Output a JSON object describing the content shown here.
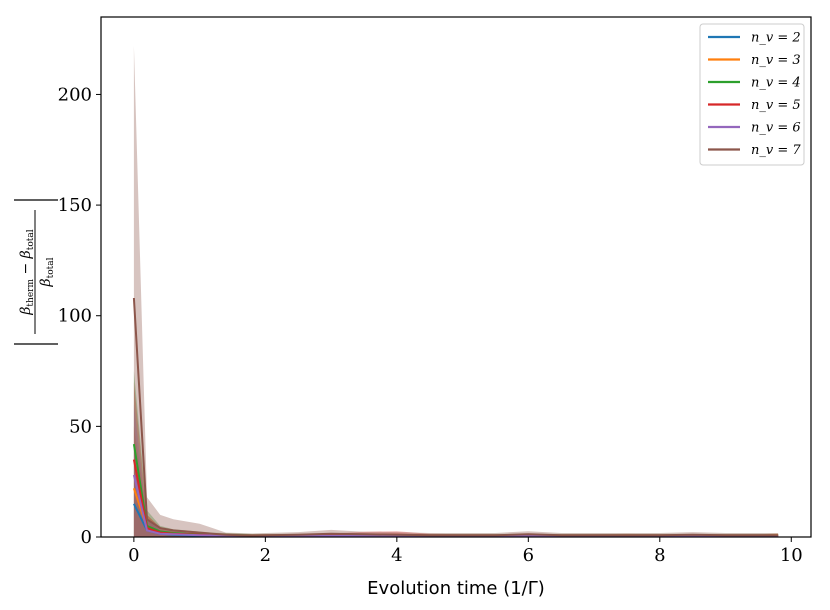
{
  "chart_data": {
    "type": "line",
    "xlabel": "Evolution time (1/Γ)",
    "ylabel": "|(β_therm − β_total)/β_total|",
    "xlim": [
      -0.5,
      10.3
    ],
    "ylim": [
      0,
      235
    ],
    "xticks": [
      0,
      2,
      4,
      6,
      8,
      10
    ],
    "yticks": [
      0,
      50,
      100,
      150,
      200
    ],
    "grid": false,
    "legend": "top-right",
    "x": [
      0.0,
      0.2,
      0.4,
      0.6,
      0.8,
      1.0,
      1.2,
      1.4,
      1.6,
      1.8,
      2.0,
      2.5,
      3.0,
      3.5,
      4.0,
      4.5,
      5.0,
      5.5,
      6.0,
      6.5,
      7.0,
      7.5,
      8.0,
      8.5,
      9.0,
      9.5,
      9.8
    ],
    "series": [
      {
        "name": "n_v = 2",
        "color": "#1f77b4",
        "values": [
          15,
          3,
          1.5,
          1.0,
          0.8,
          0.6,
          0.5,
          0.4,
          0.35,
          0.3,
          0.3,
          0.3,
          0.3,
          0.3,
          0.3,
          0.3,
          0.3,
          0.3,
          0.3,
          0.3,
          0.3,
          0.3,
          0.3,
          0.3,
          0.3,
          0.3,
          0.3
        ],
        "lower": [
          0,
          0,
          0,
          0,
          0,
          0,
          0,
          0,
          0,
          0,
          0,
          0,
          0,
          0,
          0,
          0,
          0,
          0,
          0,
          0,
          0,
          0,
          0,
          0,
          0,
          0,
          0
        ],
        "upper": [
          40,
          8,
          3,
          2,
          1.5,
          1.2,
          1,
          0.8,
          0.7,
          0.6,
          0.6,
          0.6,
          0.6,
          0.6,
          0.6,
          0.6,
          0.6,
          0.6,
          0.6,
          0.6,
          0.6,
          0.6,
          0.6,
          0.6,
          0.6,
          0.6,
          0.6
        ]
      },
      {
        "name": "n_v = 3",
        "color": "#ff7f0e",
        "values": [
          22,
          4,
          2,
          1.5,
          1.2,
          1.0,
          0.8,
          0.7,
          0.6,
          0.6,
          0.6,
          0.6,
          0.6,
          0.6,
          0.6,
          0.6,
          0.6,
          0.6,
          0.6,
          0.6,
          0.6,
          0.6,
          0.6,
          0.6,
          0.6,
          0.6,
          0.8
        ],
        "lower": [
          0,
          0,
          0,
          0,
          0,
          0,
          0,
          0,
          0,
          0,
          0,
          0,
          0,
          0,
          0,
          0,
          0,
          0,
          0,
          0,
          0,
          0,
          0,
          0,
          0,
          0,
          0
        ],
        "upper": [
          50,
          10,
          4,
          3,
          2.5,
          2,
          1.6,
          1.4,
          1.2,
          1.2,
          1.2,
          1.2,
          1.2,
          1.2,
          1.2,
          1.2,
          1.2,
          1.2,
          1.2,
          1.2,
          1.2,
          1.4,
          1.2,
          1.2,
          1.2,
          1.2,
          1.6
        ]
      },
      {
        "name": "n_v = 4",
        "color": "#2ca02c",
        "values": [
          42,
          5,
          2.5,
          1.8,
          1.4,
          1.2,
          1.0,
          0.9,
          0.8,
          0.7,
          0.7,
          0.7,
          0.7,
          0.7,
          0.7,
          0.7,
          0.7,
          0.7,
          0.7,
          0.7,
          0.7,
          0.7,
          0.7,
          0.7,
          0.7,
          0.7,
          0.7
        ],
        "lower": [
          0,
          0,
          0,
          0,
          0,
          0,
          0,
          0,
          0,
          0,
          0,
          0,
          0,
          0,
          0,
          0,
          0,
          0,
          0,
          0,
          0,
          0,
          0,
          0,
          0,
          0,
          0
        ],
        "upper": [
          75,
          12,
          5,
          3.5,
          3,
          2.5,
          2,
          1.8,
          1.6,
          1.4,
          1.4,
          1.4,
          1.4,
          1.4,
          1.4,
          1.4,
          1.4,
          1.4,
          1.4,
          1.4,
          1.4,
          1.4,
          1.4,
          1.4,
          1.4,
          1.4,
          1.4
        ]
      },
      {
        "name": "n_v = 5",
        "color": "#d62728",
        "values": [
          35,
          4,
          2,
          1.5,
          1.2,
          1.0,
          0.9,
          0.8,
          0.7,
          0.6,
          0.6,
          0.7,
          0.8,
          1.0,
          1.0,
          0.7,
          0.6,
          0.6,
          0.6,
          0.6,
          0.6,
          0.6,
          0.6,
          0.6,
          0.6,
          0.6,
          0.6
        ],
        "lower": [
          0,
          0,
          0,
          0,
          0,
          0,
          0,
          0,
          0,
          0,
          0,
          0,
          0,
          0,
          0,
          0,
          0,
          0,
          0,
          0,
          0,
          0,
          0,
          0,
          0,
          0,
          0
        ],
        "upper": [
          70,
          10,
          4.5,
          3,
          2.5,
          2,
          1.8,
          1.6,
          1.4,
          1.2,
          1.2,
          1.4,
          1.6,
          2.4,
          2.6,
          1.5,
          1.2,
          1.2,
          1.2,
          1.2,
          1.2,
          1.2,
          1.2,
          1.2,
          1.2,
          1.2,
          1.2
        ]
      },
      {
        "name": "n_v = 6",
        "color": "#9467bd",
        "values": [
          28,
          3,
          1.5,
          1.2,
          1.0,
          0.8,
          0.7,
          0.6,
          0.5,
          0.5,
          0.5,
          0.5,
          0.5,
          0.5,
          0.5,
          0.5,
          0.5,
          0.5,
          0.5,
          0.5,
          0.5,
          0.5,
          0.5,
          0.5,
          0.5,
          0.5,
          0.5
        ],
        "lower": [
          0,
          0,
          0,
          0,
          0,
          0,
          0,
          0,
          0,
          0,
          0,
          0,
          0,
          0,
          0,
          0,
          0,
          0,
          0,
          0,
          0,
          0,
          0,
          0,
          0,
          0,
          0
        ],
        "upper": [
          60,
          8,
          3.5,
          2.5,
          2,
          1.6,
          1.4,
          1.2,
          1,
          1,
          1,
          1,
          1,
          1,
          1,
          1,
          1,
          1,
          1,
          1,
          1,
          1,
          1,
          1,
          1,
          1,
          1
        ]
      },
      {
        "name": "n_v = 7",
        "color": "#8c564b",
        "values": [
          108,
          8,
          4,
          3,
          2.5,
          2.0,
          1.5,
          1.0,
          0.8,
          0.7,
          0.8,
          1.0,
          1.5,
          1.2,
          1.0,
          0.8,
          0.8,
          0.8,
          1.2,
          0.8,
          0.8,
          0.8,
          0.8,
          1.0,
          0.8,
          0.8,
          0.8
        ],
        "lower": [
          0,
          0,
          0,
          0,
          0,
          0,
          0,
          0,
          0,
          0,
          0,
          0,
          0,
          0,
          0,
          0,
          0,
          0,
          0,
          0,
          0,
          0,
          0,
          0,
          0,
          0,
          0
        ],
        "upper": [
          222,
          18,
          10,
          8,
          7,
          6,
          4,
          2,
          1.8,
          1.6,
          1.8,
          2.2,
          3.2,
          2.4,
          2.2,
          1.8,
          1.8,
          1.8,
          2.6,
          1.8,
          1.8,
          1.8,
          1.8,
          2.2,
          1.8,
          1.8,
          1.8
        ]
      }
    ]
  }
}
